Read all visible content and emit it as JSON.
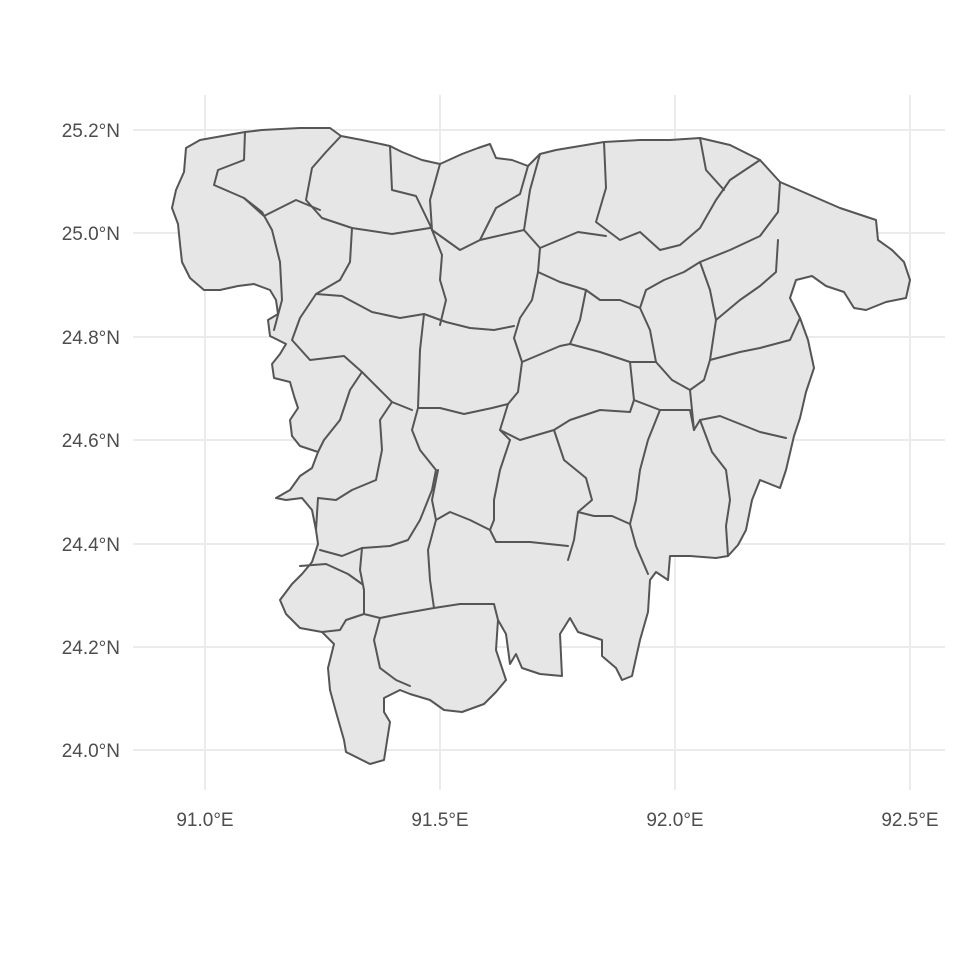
{
  "map": {
    "projection": "geographic lon/lat",
    "x_axis": {
      "range": [
        90.85,
        92.58
      ],
      "ticks": [
        {
          "value": 91.0,
          "label": "91.0°E"
        },
        {
          "value": 91.5,
          "label": "91.5°E"
        },
        {
          "value": 92.0,
          "label": "92.0°E"
        },
        {
          "value": 92.5,
          "label": "92.5°E"
        }
      ]
    },
    "y_axis": {
      "range": [
        23.93,
        25.27
      ],
      "ticks": [
        {
          "value": 24.0,
          "label": "24.0°N"
        },
        {
          "value": 24.2,
          "label": "24.2°N"
        },
        {
          "value": 24.4,
          "label": "24.4°N"
        },
        {
          "value": 24.6,
          "label": "24.6°N"
        },
        {
          "value": 24.8,
          "label": "24.8°N"
        },
        {
          "value": 25.0,
          "label": "25.0°N"
        },
        {
          "value": 25.2,
          "label": "25.2°N"
        }
      ]
    },
    "grid": true,
    "colors": {
      "fill": "#e6e6e6",
      "stroke": "#555555",
      "grid": "#ebebeb",
      "text": "#4d4d4d"
    }
  }
}
